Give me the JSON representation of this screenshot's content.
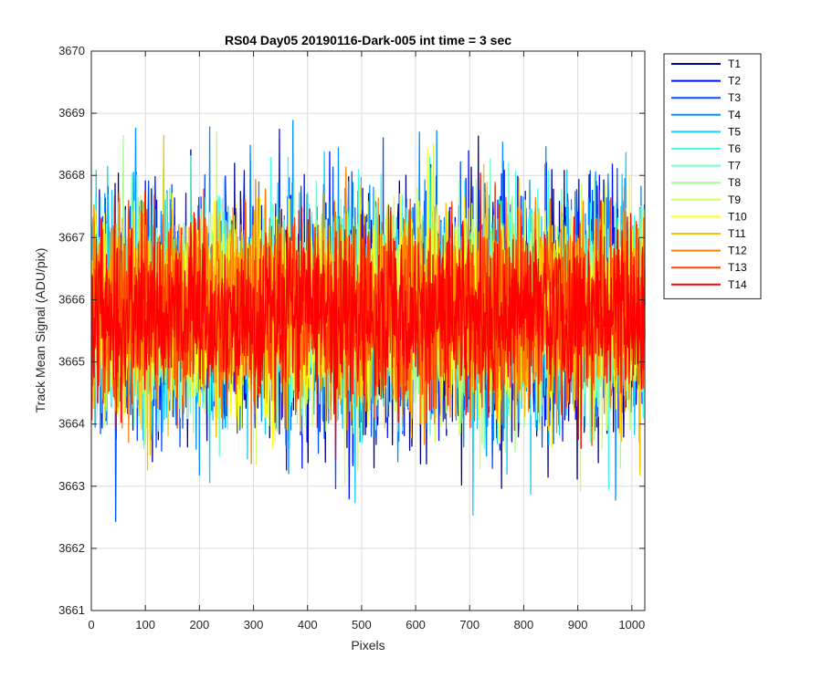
{
  "chart_data": {
    "type": "line",
    "title": "RS04 Day05 20190116-Dark-005 int time = 3 sec",
    "xlabel": "Pixels",
    "ylabel": "Track Mean Signal (ADU/pix)",
    "xlim": [
      0,
      1024
    ],
    "ylim": [
      3661,
      3670
    ],
    "xticks": [
      0,
      100,
      200,
      300,
      400,
      500,
      600,
      700,
      800,
      900,
      1000
    ],
    "yticks": [
      3661,
      3662,
      3663,
      3664,
      3665,
      3666,
      3667,
      3668,
      3669,
      3670
    ],
    "grid": true,
    "legend_position": "outside-top-right",
    "series_mean": 3665.8,
    "series": [
      {
        "name": "T1",
        "color": "#00008F",
        "spread": 1.05
      },
      {
        "name": "T2",
        "color": "#0010FF",
        "spread": 1.05
      },
      {
        "name": "T3",
        "color": "#0050FF",
        "spread": 1.0
      },
      {
        "name": "T4",
        "color": "#0090FF",
        "spread": 1.0
      },
      {
        "name": "T5",
        "color": "#10CFFF",
        "spread": 0.95
      },
      {
        "name": "T6",
        "color": "#40FFEF",
        "spread": 0.95
      },
      {
        "name": "T7",
        "color": "#70FFBF",
        "spread": 0.9
      },
      {
        "name": "T8",
        "color": "#9FFF8F",
        "spread": 0.9
      },
      {
        "name": "T9",
        "color": "#CFFF60",
        "spread": 0.9
      },
      {
        "name": "T10",
        "color": "#FFFF10",
        "spread": 0.9
      },
      {
        "name": "T11",
        "color": "#FFBF00",
        "spread": 0.85
      },
      {
        "name": "T12",
        "color": "#FF8000",
        "spread": 0.85
      },
      {
        "name": "T13",
        "color": "#FF4000",
        "spread": 0.8
      },
      {
        "name": "T14",
        "color": "#FF0000",
        "spread": 0.75
      }
    ]
  }
}
